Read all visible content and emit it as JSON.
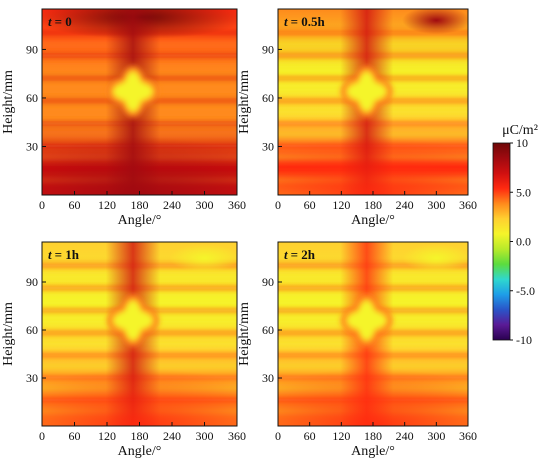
{
  "chart_data": {
    "type": "heatmap",
    "x_axis": {
      "label": "Angle/°",
      "range": [
        0,
        360
      ],
      "ticks": [
        "0",
        "60",
        "120",
        "180",
        "240",
        "300",
        "360"
      ]
    },
    "y_axis": {
      "label": "Height/mm",
      "range": [
        0,
        115
      ],
      "ticks": [
        "30",
        "60",
        "90"
      ]
    },
    "colorbar": {
      "unit": "μC/m²",
      "range": [
        -10,
        10
      ],
      "ticks": [
        "10",
        "5.0",
        "0.0",
        "-5.0",
        "-10"
      ],
      "colors": [
        "#2a0050",
        "#5a1a96",
        "#2a54c8",
        "#1e9ee8",
        "#2fd8ce",
        "#5cdc3e",
        "#b8ea2a",
        "#f5f52a",
        "#ffd030",
        "#ff8a1c",
        "#ff2a10",
        "#d01010",
        "#a00a10",
        "#6e0808"
      ]
    },
    "panels": [
      {
        "time_prefix": "t",
        "time_value": "= 0",
        "mean_level": 5.6,
        "center": {
          "angle": 168,
          "height": 64,
          "value": 1.5
        },
        "top_max": {
          "angle": 180,
          "height": 110,
          "value": 10
        }
      },
      {
        "time_prefix": "t",
        "time_value": "= 0.5h",
        "mean_level": 3.6,
        "center": {
          "angle": 168,
          "height": 64,
          "value": 1.5
        },
        "top_max": {
          "angle": 300,
          "height": 108,
          "value": 8
        }
      },
      {
        "time_prefix": "t",
        "time_value": "= 1h",
        "mean_level": 3.2,
        "center": {
          "angle": 168,
          "height": 66,
          "value": 1.5
        },
        "top_max": {
          "angle": 300,
          "height": 105,
          "value": 1.5
        }
      },
      {
        "time_prefix": "t",
        "time_value": "= 2h",
        "mean_level": 3.0,
        "center": {
          "angle": 168,
          "height": 66,
          "value": 1.5
        },
        "top_max": {
          "angle": 300,
          "height": 105,
          "value": 1.5
        }
      }
    ]
  }
}
